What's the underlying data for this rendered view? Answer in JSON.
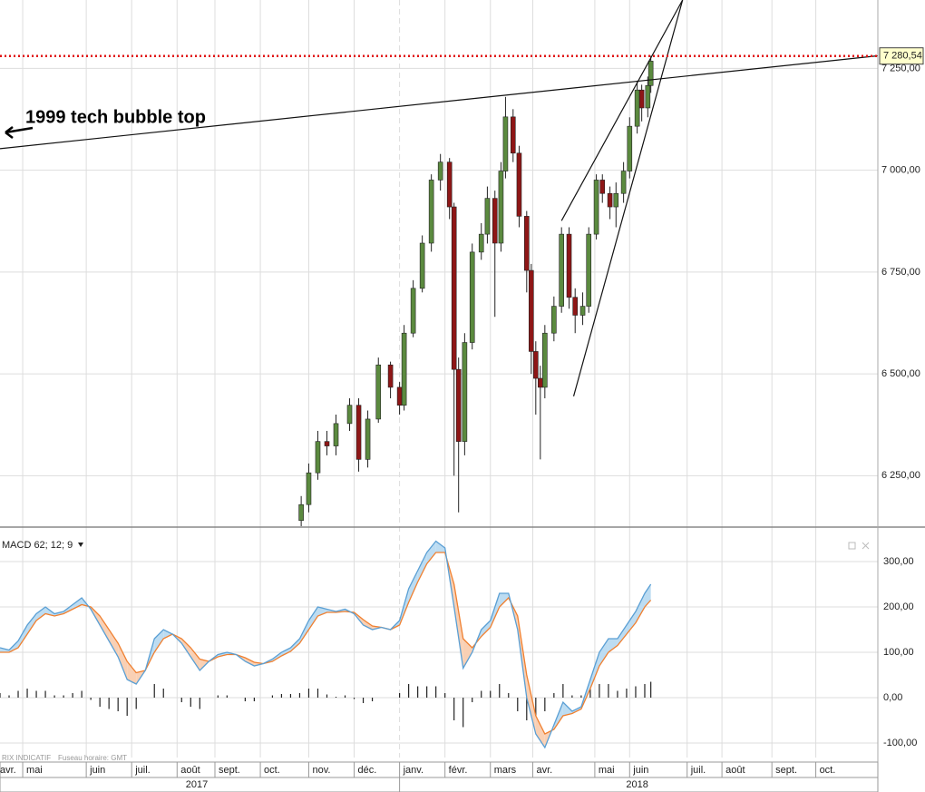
{
  "chart_data": [
    {
      "type": "candlestick",
      "annotation": "1999 tech bubble top",
      "x": [
        199,
        204,
        210,
        216,
        222,
        231,
        237,
        243,
        250,
        258,
        264,
        267,
        273,
        279,
        285,
        291,
        297,
        300,
        303,
        307,
        312,
        318,
        322,
        327,
        331,
        334,
        339,
        343,
        348,
        351,
        354,
        357,
        360,
        366,
        371,
        376,
        380,
        385,
        389,
        394,
        398,
        403,
        407,
        412,
        416,
        421,
        424,
        428,
        430
      ],
      "open": [
        6140,
        6179,
        6257,
        6334,
        6323,
        6378,
        6423,
        6290,
        6389,
        6522,
        6467,
        6423,
        6600,
        6710,
        6821,
        6976,
        7020,
        6910,
        6511,
        6334,
        6577,
        6799,
        6843,
        6931,
        6821,
        6998,
        7131,
        7042,
        6887,
        6754,
        6555,
        6489,
        6467,
        6600,
        6666,
        6843,
        6688,
        6644,
        6666,
        6843,
        6976,
        6943,
        6910,
        6943,
        6998,
        7108,
        7197,
        7153,
        7208
      ],
      "high": [
        6200,
        6280,
        6360,
        6360,
        6400,
        6440,
        6440,
        6410,
        6540,
        6530,
        6480,
        6620,
        6730,
        6840,
        6990,
        7040,
        7030,
        6920,
        6540,
        6600,
        6820,
        6870,
        6960,
        6950,
        7020,
        7180,
        7150,
        7060,
        6900,
        6770,
        6580,
        6520,
        6620,
        6690,
        6860,
        6860,
        6710,
        6700,
        6860,
        6990,
        6990,
        6960,
        6970,
        7020,
        7130,
        7220,
        7210,
        7230,
        7281
      ],
      "low": [
        6126,
        6160,
        6240,
        6300,
        6300,
        6360,
        6260,
        6270,
        6380,
        6440,
        6400,
        6410,
        6590,
        6700,
        6800,
        6950,
        6880,
        6250,
        6160,
        6300,
        6560,
        6780,
        6820,
        6640,
        6800,
        6980,
        7020,
        6860,
        6700,
        6500,
        6400,
        6290,
        6440,
        6580,
        6650,
        6660,
        6600,
        6620,
        6650,
        6830,
        6920,
        6880,
        6860,
        6920,
        6980,
        7090,
        7120,
        7130,
        7190
      ],
      "close": [
        6179,
        6257,
        6334,
        6323,
        6378,
        6423,
        6290,
        6389,
        6522,
        6467,
        6423,
        6600,
        6710,
        6821,
        6976,
        7020,
        6910,
        6511,
        6334,
        6577,
        6799,
        6843,
        6931,
        6821,
        6998,
        7131,
        7042,
        6887,
        6754,
        6555,
        6489,
        6467,
        6600,
        6666,
        6843,
        6688,
        6644,
        6666,
        6843,
        6976,
        6943,
        6910,
        6943,
        6998,
        7108,
        7197,
        7153,
        7208,
        7268
      ],
      "colors": {
        "up": "#5b8a3f",
        "down": "#8e1616"
      },
      "xlim": [
        0,
        580
      ],
      "xticks": [
        {
          "value": 15,
          "label": "mai"
        },
        {
          "value": 57,
          "label": "juin"
        },
        {
          "value": 87,
          "label": "juil."
        },
        {
          "value": 117,
          "label": "août"
        },
        {
          "value": 142,
          "label": "sept."
        },
        {
          "value": 172,
          "label": "oct."
        },
        {
          "value": 204,
          "label": "nov."
        },
        {
          "value": 234,
          "label": "déc."
        },
        {
          "value": 264,
          "label": "janv."
        },
        {
          "value": 294,
          "label": "févr."
        },
        {
          "value": 324,
          "label": "mars"
        },
        {
          "value": 352,
          "label": "avr."
        },
        {
          "value": 393,
          "label": "mai"
        },
        {
          "value": 416,
          "label": "juin"
        },
        {
          "value": 454,
          "label": "juil."
        },
        {
          "value": 477,
          "label": "août"
        },
        {
          "value": 510,
          "label": "sept."
        },
        {
          "value": 539,
          "label": "oct."
        }
      ],
      "first_month": "avr.",
      "years": [
        {
          "value": 130,
          "label": "2017"
        },
        {
          "value": 421,
          "label": "2018"
        }
      ],
      "ylim": [
        6126,
        7418
      ],
      "yticks": [
        {
          "value": 6250,
          "label": "6 250,00"
        },
        {
          "value": 6500,
          "label": "6 500,00"
        },
        {
          "value": 6750,
          "label": "6 750,00"
        },
        {
          "value": 7000,
          "label": "7 000,00"
        },
        {
          "value": 7250,
          "label": "7 250,00"
        }
      ],
      "last_price": {
        "value": 7280.54,
        "label": "7 280,54",
        "color": "#e01010"
      },
      "trendlines": [
        {
          "x": [
            0,
            580
          ],
          "y": [
            7053,
            7281
          ]
        },
        {
          "x": [
            371,
            451
          ],
          "y": [
            6876,
            7418
          ]
        },
        {
          "x": [
            379,
            451
          ],
          "y": [
            6445,
            7418
          ]
        }
      ],
      "grid": true
    },
    {
      "type": "macd",
      "title": "MACD 62; 12; 9",
      "footer": [
        "RIX INDICATIF",
        "Fuseau horaire: GMT"
      ],
      "x": [
        0,
        6,
        12,
        18,
        24,
        30,
        36,
        42,
        48,
        54,
        60,
        66,
        72,
        78,
        84,
        90,
        96,
        102,
        108,
        114,
        120,
        126,
        132,
        138,
        144,
        150,
        156,
        162,
        168,
        174,
        180,
        186,
        192,
        198,
        204,
        210,
        216,
        222,
        228,
        234,
        240,
        246,
        252,
        258,
        264,
        270,
        276,
        282,
        288,
        294,
        300,
        306,
        312,
        318,
        324,
        330,
        336,
        342,
        348,
        354,
        360,
        366,
        372,
        378,
        384,
        390,
        396,
        402,
        408,
        414,
        420,
        426,
        430
      ],
      "macd": {
        "color": "#5a9fd4",
        "values": [
          110,
          105,
          125,
          160,
          185,
          200,
          185,
          190,
          205,
          220,
          195,
          160,
          125,
          90,
          40,
          30,
          60,
          130,
          150,
          140,
          120,
          90,
          60,
          80,
          95,
          100,
          95,
          80,
          70,
          75,
          85,
          100,
          110,
          130,
          170,
          200,
          195,
          190,
          195,
          185,
          160,
          150,
          155,
          150,
          170,
          240,
          280,
          320,
          345,
          330,
          200,
          65,
          100,
          150,
          170,
          230,
          230,
          150,
          0,
          -80,
          -110,
          -60,
          -10,
          -30,
          -20,
          40,
          100,
          130,
          130,
          160,
          190,
          230,
          250
        ]
      },
      "signal": {
        "color": "#f08030",
        "values": [
          100,
          100,
          110,
          140,
          170,
          185,
          180,
          185,
          195,
          205,
          200,
          180,
          150,
          120,
          80,
          55,
          60,
          100,
          130,
          140,
          130,
          110,
          85,
          80,
          90,
          95,
          95,
          88,
          78,
          75,
          80,
          92,
          102,
          120,
          150,
          180,
          188,
          188,
          190,
          188,
          172,
          158,
          155,
          150,
          160,
          210,
          255,
          295,
          320,
          320,
          250,
          130,
          110,
          135,
          155,
          200,
          220,
          180,
          50,
          -40,
          -80,
          -70,
          -40,
          -35,
          -25,
          20,
          70,
          100,
          115,
          140,
          165,
          200,
          215
        ]
      },
      "histogram": {
        "color": "#222222",
        "values": [
          10,
          5,
          15,
          20,
          15,
          15,
          5,
          5,
          10,
          15,
          -5,
          -20,
          -25,
          -30,
          -40,
          -25,
          0,
          30,
          20,
          0,
          -10,
          -20,
          -25,
          0,
          5,
          5,
          0,
          -8,
          -8,
          0,
          5,
          8,
          8,
          10,
          20,
          20,
          7,
          2,
          5,
          -3,
          -12,
          -8,
          0,
          0,
          10,
          30,
          25,
          25,
          25,
          10,
          -50,
          -65,
          -10,
          15,
          15,
          30,
          10,
          -30,
          -50,
          -40,
          -30,
          10,
          30,
          5,
          5,
          20,
          30,
          30,
          15,
          20,
          25,
          30,
          35
        ]
      },
      "fill_above": "#bcdcf2",
      "fill_below": "#f9d0b4",
      "ylim": [
        -132,
        372
      ],
      "yticks": [
        {
          "value": 300,
          "label": "300,00"
        },
        {
          "value": 200,
          "label": "200,00"
        },
        {
          "value": 100,
          "label": "100,00"
        },
        {
          "value": 0,
          "label": "0,00"
        },
        {
          "value": -100,
          "label": "-100,00"
        }
      ],
      "grid": true
    }
  ]
}
